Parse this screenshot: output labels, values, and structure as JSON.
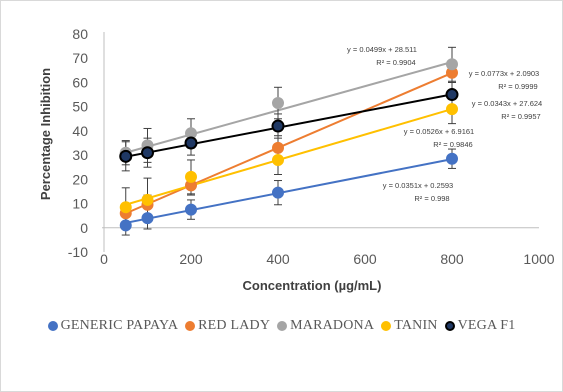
{
  "chart_data": {
    "type": "scatter",
    "xlabel": "Concentration (µg/mL)",
    "ylabel": "Percentage Inhibition",
    "xlim": [
      0,
      1000
    ],
    "ylim": [
      -10,
      80
    ],
    "xticks": [
      0,
      200,
      400,
      600,
      800,
      1000
    ],
    "yticks": [
      -10,
      0,
      10,
      20,
      30,
      40,
      50,
      60,
      70,
      80
    ],
    "x_tick_labels": [
      "0",
      "200",
      "400",
      "600",
      "800",
      "1000"
    ],
    "y_tick_labels": [
      "-10",
      "0",
      "10",
      "20",
      "30",
      "40",
      "50",
      "60",
      "70",
      "80"
    ],
    "grid": false,
    "legend_position": "bottom",
    "x": [
      50,
      100,
      200,
      400,
      800
    ],
    "series": [
      {
        "name": "GENERIC PAPAYA",
        "color": "#4472c4",
        "values": [
          1,
          4,
          7.5,
          14.5,
          28.5
        ],
        "errors": [
          4,
          4.5,
          4,
          5,
          4
        ],
        "trendline": [
          0.0351,
          0.2593
        ],
        "equation": "y = 0.0351x + 0.2593",
        "r2": "R² = 0.998"
      },
      {
        "name": "RED LADY",
        "color": "#ed7d31",
        "values": [
          6,
          9.5,
          17.5,
          33,
          64
        ],
        "errors": [
          4,
          4,
          4,
          5,
          4
        ],
        "trendline": [
          0.0773,
          2.0903
        ],
        "equation": "y = 0.0773x + 2.0903",
        "r2": "R² = 0.9999"
      },
      {
        "name": "MARADONA",
        "color": "#a5a5a5",
        "values": [
          31,
          34,
          39,
          51.5,
          67.5
        ],
        "errors": [
          5,
          7,
          6,
          6.5,
          7
        ],
        "trendline": [
          0.0499,
          28.511
        ],
        "equation": "y = 0.0499x + 28.511",
        "r2": "R² = 0.9904"
      },
      {
        "name": "TANIN",
        "color": "#ffc000",
        "values": [
          8.5,
          11.5,
          21,
          28,
          49
        ],
        "errors": [
          8,
          9,
          7,
          6,
          6
        ],
        "trendline": [
          0.0526,
          6.9161
        ],
        "equation": "y = 0.0526x + 6.9161",
        "r2": "R² = 0.9846"
      },
      {
        "name": "VEGA F1",
        "color": "#000000",
        "values": [
          29.5,
          31,
          35,
          42,
          55
        ],
        "errors": [
          6,
          6,
          5,
          5,
          5
        ],
        "trendline": [
          0.0343,
          27.624
        ],
        "equation": "y = 0.0343x + 27.624",
        "r2": "R² = 0.9957"
      }
    ]
  }
}
